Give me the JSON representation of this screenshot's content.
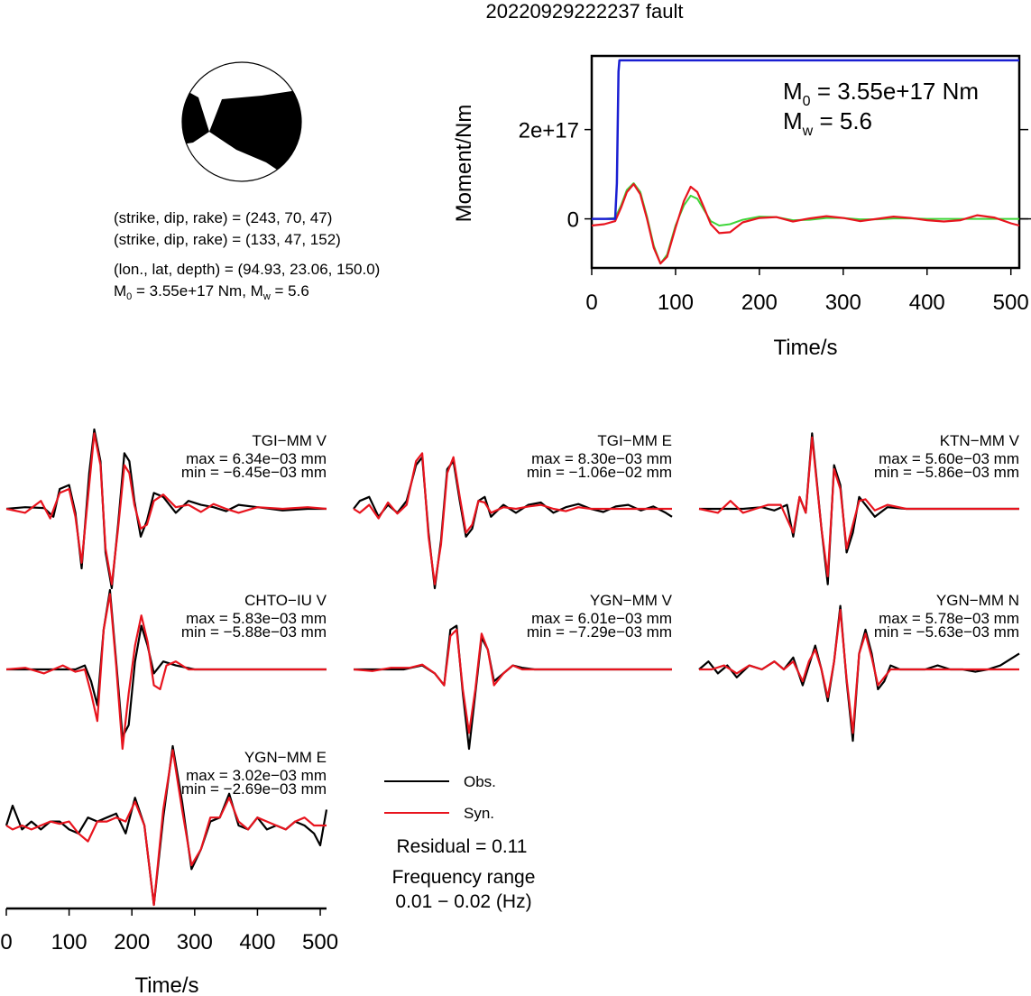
{
  "figure_title": "20220929222237 fault",
  "mechanism": {
    "lines": [
      "(strike, dip, rake) = (243, 70, 47)",
      "(strike, dip, rake) = (133, 47, 152)",
      "(lon., lat, depth) = (94.93, 23.06, 150.0)"
    ],
    "moment_line": {
      "m0_prefix": "M",
      "m0_sub": "0",
      "m0_value": " = 3.55e+17 Nm, M",
      "mw_sub": "w",
      "mw_value": " = 5.6"
    }
  },
  "legend": {
    "obs_label": "Obs.",
    "syn_label": "Syn.",
    "residual": "Residual = 0.11",
    "freq_title": "Frequency range",
    "freq_value": "0.01 − 0.02 (Hz)"
  },
  "colors": {
    "obs": "#000000",
    "syn": "#e8141e",
    "moment": "#1a1fd2",
    "green": "#3fd63a"
  },
  "chart_data": [
    {
      "type": "line",
      "ylabel": "Moment/Nm",
      "xlabel": "Time/s",
      "xlim": [
        0,
        510
      ],
      "ylim": [
        -1.1e+17,
        3.65e+17
      ],
      "x_ticks": [
        0,
        100,
        200,
        300,
        400,
        500
      ],
      "y_ticks": [
        {
          "value": 0,
          "label": "0"
        },
        {
          "value": 2e+17,
          "label": "2e+17"
        }
      ],
      "annotation": {
        "m0": "= 3.55e+17 Nm",
        "mw": "= 5.6"
      },
      "cumulative_moment": {
        "x": [
          0,
          28,
          30,
          32,
          33,
          510
        ],
        "y": [
          0,
          0,
          8e+16,
          3.3e+17,
          3.55e+17,
          3.55e+17
        ]
      },
      "wave_red": {
        "x": [
          0,
          15,
          28,
          35,
          42,
          50,
          58,
          66,
          74,
          82,
          90,
          100,
          110,
          118,
          126,
          134,
          142,
          152,
          165,
          180,
          200,
          220,
          240,
          260,
          280,
          300,
          320,
          340,
          360,
          380,
          400,
          420,
          440,
          460,
          480,
          500,
          510
        ],
        "y": [
          -0.15,
          -0.12,
          -0.05,
          0.25,
          0.6,
          0.78,
          0.55,
          0.0,
          -0.65,
          -1.0,
          -0.85,
          -0.2,
          0.4,
          0.72,
          0.6,
          0.25,
          -0.12,
          -0.32,
          -0.3,
          -0.08,
          0.02,
          0.04,
          -0.06,
          0.01,
          0.06,
          0.02,
          -0.05,
          0.0,
          0.05,
          0.02,
          -0.03,
          -0.06,
          -0.03,
          0.08,
          0.03,
          -0.1,
          -0.15
        ]
      },
      "wave_green": {
        "x": [
          0,
          15,
          28,
          35,
          42,
          50,
          58,
          66,
          74,
          82,
          90,
          100,
          110,
          118,
          126,
          134,
          142,
          152,
          165,
          180,
          200,
          220,
          240,
          260,
          280,
          300,
          320,
          340,
          360,
          380,
          400,
          420,
          440,
          460,
          480,
          500,
          510
        ],
        "y": [
          0,
          0,
          0.02,
          0.3,
          0.65,
          0.8,
          0.6,
          0.05,
          -0.6,
          -1.0,
          -0.8,
          -0.15,
          0.3,
          0.52,
          0.45,
          0.2,
          -0.05,
          -0.15,
          -0.12,
          -0.02,
          0.05,
          0.04,
          -0.03,
          -0.02,
          0.02,
          0.02,
          -0.01,
          -0.01,
          0.01,
          0.01,
          0,
          0,
          0,
          0,
          0,
          0,
          0
        ]
      }
    },
    {
      "type": "line",
      "station": "TGI−MM V",
      "max_label": "max = 6.34e−03 mm",
      "min_label": "min = −6.45e−03 mm",
      "max": 0.00634,
      "min": -0.00645,
      "obs": {
        "x": [
          0,
          30,
          60,
          75,
          85,
          100,
          110,
          120,
          132,
          140,
          150,
          158,
          168,
          178,
          188,
          196,
          204,
          214,
          224,
          235,
          250,
          270,
          290,
          310,
          330,
          350,
          370,
          400,
          440,
          480,
          510
        ],
        "y": [
          0,
          0.02,
          0.01,
          -0.1,
          0.25,
          0.3,
          -0.05,
          -0.75,
          0.45,
          1.0,
          0.6,
          -0.55,
          -1.0,
          -0.2,
          0.7,
          0.6,
          0.1,
          -0.35,
          -0.15,
          0.2,
          0.15,
          -0.05,
          0.1,
          0.05,
          0.02,
          -0.03,
          0.05,
          0.02,
          -0.02,
          0.0,
          0.0
        ]
      },
      "syn": {
        "x": [
          0,
          30,
          55,
          70,
          85,
          100,
          110,
          120,
          132,
          140,
          150,
          158,
          168,
          178,
          188,
          196,
          204,
          214,
          224,
          235,
          250,
          270,
          290,
          310,
          330,
          350,
          370,
          400,
          440,
          480,
          510
        ],
        "y": [
          0,
          -0.05,
          0.1,
          -0.12,
          0.2,
          0.25,
          -0.1,
          -0.68,
          0.3,
          0.95,
          0.55,
          -0.5,
          -0.95,
          -0.25,
          0.55,
          0.45,
          0.05,
          -0.25,
          -0.2,
          0.1,
          0.18,
          0.02,
          0.05,
          -0.04,
          0.06,
          0.0,
          -0.05,
          0.02,
          0.0,
          0.02,
          0.0
        ]
      }
    },
    {
      "type": "line",
      "station": "TGI−MM E",
      "max_label": "max = 8.30e−03 mm",
      "min_label": "min = −1.06e−02 mm",
      "max": 0.0083,
      "min": -0.0106,
      "obs": {
        "x": [
          0,
          10,
          25,
          40,
          55,
          70,
          85,
          100,
          110,
          120,
          130,
          140,
          150,
          160,
          170,
          180,
          190,
          200,
          210,
          220,
          240,
          260,
          280,
          300,
          320,
          340,
          360,
          380,
          400,
          420,
          440,
          460,
          480,
          500,
          510
        ],
        "y": [
          0,
          0.1,
          0.15,
          -0.1,
          0.05,
          -0.05,
          0.1,
          0.55,
          0.65,
          -0.3,
          -1.0,
          -0.4,
          0.5,
          0.6,
          0.1,
          -0.35,
          -0.25,
          0.1,
          0.15,
          -0.1,
          0.05,
          -0.05,
          0.05,
          0.08,
          -0.05,
          0.02,
          0.06,
          0.0,
          -0.04,
          0.03,
          0.05,
          -0.02,
          0.03,
          -0.05,
          -0.1
        ]
      },
      "syn": {
        "x": [
          0,
          10,
          25,
          40,
          55,
          70,
          85,
          100,
          110,
          120,
          130,
          140,
          150,
          160,
          170,
          180,
          190,
          200,
          210,
          220,
          240,
          260,
          280,
          300,
          320,
          340,
          360,
          380,
          400,
          420,
          440,
          460,
          480,
          500,
          510
        ],
        "y": [
          0,
          -0.05,
          0.05,
          -0.12,
          0.08,
          -0.06,
          0.05,
          0.6,
          0.7,
          -0.35,
          -0.95,
          -0.45,
          0.45,
          0.65,
          0.15,
          -0.3,
          -0.2,
          0.1,
          0.08,
          -0.05,
          0.02,
          0.0,
          0.03,
          0.05,
          0.0,
          -0.03,
          0.02,
          0.0,
          0.0,
          0.0,
          0.0,
          0.0,
          0.0,
          0.0,
          0.0
        ]
      }
    },
    {
      "type": "line",
      "station": "KTN−MM V",
      "max_label": "max = 5.60e−03 mm",
      "min_label": "min = −5.86e−03 mm",
      "max": 0.0056,
      "min": -0.00586,
      "obs": {
        "x": [
          0,
          40,
          70,
          100,
          120,
          140,
          150,
          160,
          170,
          180,
          195,
          205,
          215,
          225,
          235,
          245,
          255,
          265,
          280,
          300,
          330,
          360,
          400,
          440,
          480,
          510
        ],
        "y": [
          0,
          0,
          0.0,
          0.02,
          -0.02,
          0.05,
          -0.35,
          0.15,
          -0.05,
          0.95,
          -0.25,
          -0.95,
          0.55,
          0.3,
          -0.55,
          -0.3,
          0.15,
          0.05,
          -0.1,
          0.02,
          0.0,
          0.0,
          0.0,
          0.0,
          0.0,
          0.0
        ]
      },
      "syn": {
        "x": [
          0,
          30,
          50,
          70,
          90,
          110,
          130,
          150,
          160,
          170,
          180,
          195,
          205,
          215,
          225,
          235,
          245,
          255,
          265,
          280,
          300,
          330,
          360,
          400,
          440,
          480,
          510
        ],
        "y": [
          0,
          -0.05,
          0.1,
          -0.05,
          0.0,
          0.05,
          0.05,
          -0.3,
          0.15,
          -0.05,
          0.9,
          -0.25,
          -0.85,
          0.5,
          0.25,
          -0.5,
          -0.2,
          0.1,
          0.12,
          -0.02,
          0.05,
          0.0,
          0.0,
          0.0,
          0.0,
          0.0,
          0.0
        ]
      }
    },
    {
      "type": "line",
      "station": "CHTO−IU V",
      "max_label": "max = 5.83e−03 mm",
      "min_label": "min = −5.88e−03 mm",
      "max": 0.00583,
      "min": -0.00588,
      "obs": {
        "x": [
          0,
          40,
          80,
          110,
          125,
          135,
          145,
          155,
          165,
          175,
          185,
          195,
          205,
          215,
          225,
          235,
          250,
          270,
          300,
          340,
          380,
          420,
          460,
          510
        ],
        "y": [
          0,
          0,
          0.0,
          0.0,
          0.05,
          -0.15,
          -0.45,
          0.5,
          1.0,
          0.1,
          -0.85,
          -0.7,
          0.1,
          0.55,
          0.3,
          -0.05,
          0.1,
          0.05,
          0.0,
          0.0,
          0.0,
          0.0,
          0.0,
          0.0
        ]
      },
      "syn": {
        "x": [
          0,
          30,
          60,
          90,
          110,
          125,
          135,
          145,
          155,
          165,
          175,
          185,
          195,
          205,
          215,
          225,
          235,
          245,
          255,
          270,
          290,
          320,
          360,
          400,
          440,
          480,
          510
        ],
        "y": [
          0,
          0.02,
          -0.05,
          0.05,
          -0.03,
          0.0,
          -0.3,
          -0.65,
          0.5,
          0.95,
          0.05,
          -1.0,
          -0.3,
          0.3,
          0.68,
          0.35,
          -0.2,
          -0.25,
          0.05,
          0.1,
          0.0,
          0.0,
          0.0,
          0.0,
          0.0,
          0.0,
          0.0
        ]
      }
    },
    {
      "type": "line",
      "station": "YGN−MM V",
      "max_label": "max = 6.01e−03 mm",
      "min_label": "min = −7.29e−03 mm",
      "max": 0.00601,
      "min": -0.00729,
      "obs": {
        "x": [
          0,
          40,
          80,
          110,
          130,
          145,
          155,
          165,
          175,
          185,
          195,
          205,
          215,
          225,
          240,
          255,
          270,
          290,
          320,
          360,
          400,
          440,
          480,
          510
        ],
        "y": [
          0,
          0,
          0.0,
          0.05,
          -0.05,
          -0.2,
          0.5,
          0.55,
          -0.3,
          -1.0,
          -0.3,
          0.4,
          0.25,
          -0.15,
          -0.05,
          0.05,
          0.02,
          0.0,
          0.0,
          0.0,
          0.0,
          0.0,
          0.0,
          0.0
        ]
      },
      "syn": {
        "x": [
          0,
          30,
          60,
          90,
          110,
          130,
          145,
          155,
          165,
          175,
          185,
          195,
          205,
          215,
          225,
          240,
          255,
          270,
          290,
          320,
          360,
          400,
          440,
          480,
          510
        ],
        "y": [
          0,
          -0.02,
          0.02,
          0.02,
          0.06,
          -0.05,
          -0.2,
          0.42,
          0.5,
          -0.25,
          -0.8,
          -0.25,
          0.45,
          0.25,
          -0.2,
          -0.05,
          0.05,
          0.0,
          0.0,
          0.0,
          0.0,
          0.0,
          0.0,
          0.0,
          0.0
        ]
      }
    },
    {
      "type": "line",
      "station": "YGN−MM N",
      "max_label": "max = 5.78e−03 mm",
      "min_label": "min = −5.63e−03 mm",
      "max": 0.00578,
      "min": -0.00563,
      "obs": {
        "x": [
          0,
          15,
          30,
          45,
          60,
          80,
          100,
          120,
          135,
          150,
          165,
          175,
          185,
          195,
          205,
          215,
          225,
          235,
          245,
          255,
          265,
          275,
          285,
          295,
          305,
          320,
          340,
          360,
          380,
          400,
          420,
          440,
          460,
          480,
          510
        ],
        "y": [
          0,
          0.1,
          -0.05,
          0.05,
          -0.1,
          0.05,
          0.0,
          0.1,
          0.0,
          0.15,
          -0.2,
          0.05,
          0.3,
          0.0,
          -0.4,
          0.1,
          0.8,
          -0.15,
          -0.9,
          0.2,
          0.5,
          0.2,
          -0.25,
          -0.15,
          0.05,
          0.0,
          0.0,
          0.0,
          0.05,
          0.0,
          0.0,
          -0.03,
          0.0,
          0.05,
          0.2
        ]
      },
      "syn": {
        "x": [
          0,
          20,
          40,
          60,
          80,
          100,
          120,
          135,
          150,
          165,
          175,
          185,
          195,
          205,
          215,
          225,
          235,
          245,
          255,
          265,
          275,
          285,
          295,
          305,
          320,
          340,
          360,
          380,
          400,
          420,
          440,
          460,
          480,
          510
        ],
        "y": [
          0,
          0.0,
          0.05,
          -0.05,
          0.05,
          0.0,
          0.1,
          0.0,
          0.1,
          -0.15,
          0.1,
          0.25,
          0.0,
          -0.35,
          0.1,
          0.75,
          -0.12,
          -0.8,
          0.2,
          0.45,
          0.15,
          -0.2,
          -0.1,
          0.0,
          0.0,
          0.0,
          0.0,
          0.0,
          0.0,
          0.0,
          0.0,
          0.0,
          0.0,
          0.0
        ]
      }
    },
    {
      "type": "line",
      "station": "YGN−MM E",
      "max_label": "max = 3.02e−03 mm",
      "min_label": "min = −2.69e−03 mm",
      "max": 0.00302,
      "min": -0.00269,
      "xlim": [
        0,
        510
      ],
      "x_ticks": [
        0,
        100,
        200,
        300,
        400,
        500
      ],
      "xlabel": "Time/s",
      "obs": {
        "x": [
          0,
          10,
          25,
          40,
          55,
          70,
          85,
          100,
          115,
          130,
          145,
          160,
          175,
          190,
          205,
          220,
          235,
          250,
          265,
          280,
          295,
          310,
          325,
          340,
          355,
          370,
          385,
          400,
          415,
          430,
          445,
          460,
          475,
          490,
          500,
          510
        ],
        "y": [
          0,
          0.25,
          -0.05,
          0.05,
          -0.05,
          0.05,
          0.05,
          -0.05,
          -0.1,
          0.1,
          0.05,
          0.1,
          0.15,
          -0.1,
          0.35,
          0.0,
          -1.0,
          0.1,
          1.0,
          0.3,
          -0.55,
          -0.3,
          0.05,
          0.1,
          0.4,
          0.0,
          -0.05,
          0.1,
          -0.05,
          0.0,
          -0.05,
          0.05,
          0.0,
          -0.1,
          -0.25,
          0.2
        ]
      },
      "syn": {
        "x": [
          0,
          10,
          25,
          40,
          55,
          70,
          85,
          100,
          115,
          130,
          145,
          160,
          175,
          190,
          205,
          220,
          235,
          250,
          265,
          280,
          295,
          310,
          325,
          340,
          355,
          370,
          385,
          400,
          415,
          430,
          445,
          460,
          475,
          490,
          510
        ],
        "y": [
          0,
          -0.05,
          0.0,
          -0.05,
          0.0,
          0.05,
          0.02,
          0.05,
          -0.1,
          -0.2,
          0.05,
          0.05,
          0.1,
          0.05,
          0.3,
          0.0,
          -1.0,
          0.2,
          0.95,
          0.2,
          -0.5,
          -0.3,
          0.1,
          0.1,
          0.35,
          0.05,
          -0.05,
          0.1,
          0.05,
          0.0,
          -0.05,
          0.05,
          0.1,
          0.0,
          0.0
        ]
      }
    }
  ]
}
